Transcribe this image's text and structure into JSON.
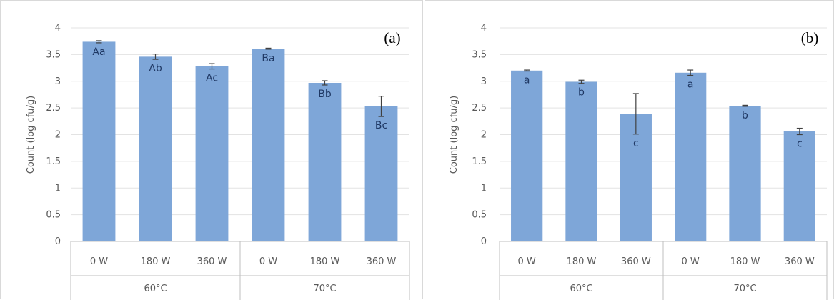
{
  "chart_data": [
    {
      "type": "bar",
      "panel_label": "(a)",
      "ylabel": "Count (log cfu/g)",
      "ylim": [
        0,
        4
      ],
      "yticks": [
        "0",
        "0.5",
        "1",
        "1.5",
        "2",
        "2.5",
        "3",
        "3.5",
        "4"
      ],
      "grid": true,
      "categories": [
        "0 W",
        "180 W",
        "360 W",
        "0 W",
        "180 W",
        "360 W"
      ],
      "groups": [
        {
          "label": "60°C",
          "count": 3
        },
        {
          "label": "70°C",
          "count": 3
        }
      ],
      "values": [
        3.74,
        3.46,
        3.28,
        3.61,
        2.97,
        2.53
      ],
      "errors": [
        0.02,
        0.05,
        0.05,
        0.01,
        0.04,
        0.19
      ],
      "data_labels": [
        "Aa",
        "Ab",
        "Ac",
        "Ba",
        "Bb",
        "Bc"
      ],
      "bar_color": "#7ea6d8"
    },
    {
      "type": "bar",
      "panel_label": "(b)",
      "ylabel": "Count (log cfu/g)",
      "ylim": [
        0,
        4
      ],
      "yticks": [
        "0",
        "0.5",
        "1",
        "1.5",
        "2",
        "2.5",
        "3",
        "3.5",
        "4"
      ],
      "grid": true,
      "categories": [
        "0 W",
        "180 W",
        "360 W",
        "0 W",
        "180 W",
        "360 W"
      ],
      "groups": [
        {
          "label": "60°C",
          "count": 3
        },
        {
          "label": "70°C",
          "count": 3
        }
      ],
      "values": [
        3.2,
        2.99,
        2.39,
        3.16,
        2.54,
        2.06
      ],
      "errors": [
        0.01,
        0.03,
        0.38,
        0.05,
        0.01,
        0.06
      ],
      "data_labels": [
        "a",
        "b",
        "c",
        "a",
        "b",
        "c"
      ],
      "bar_color": "#7ea6d8"
    }
  ]
}
